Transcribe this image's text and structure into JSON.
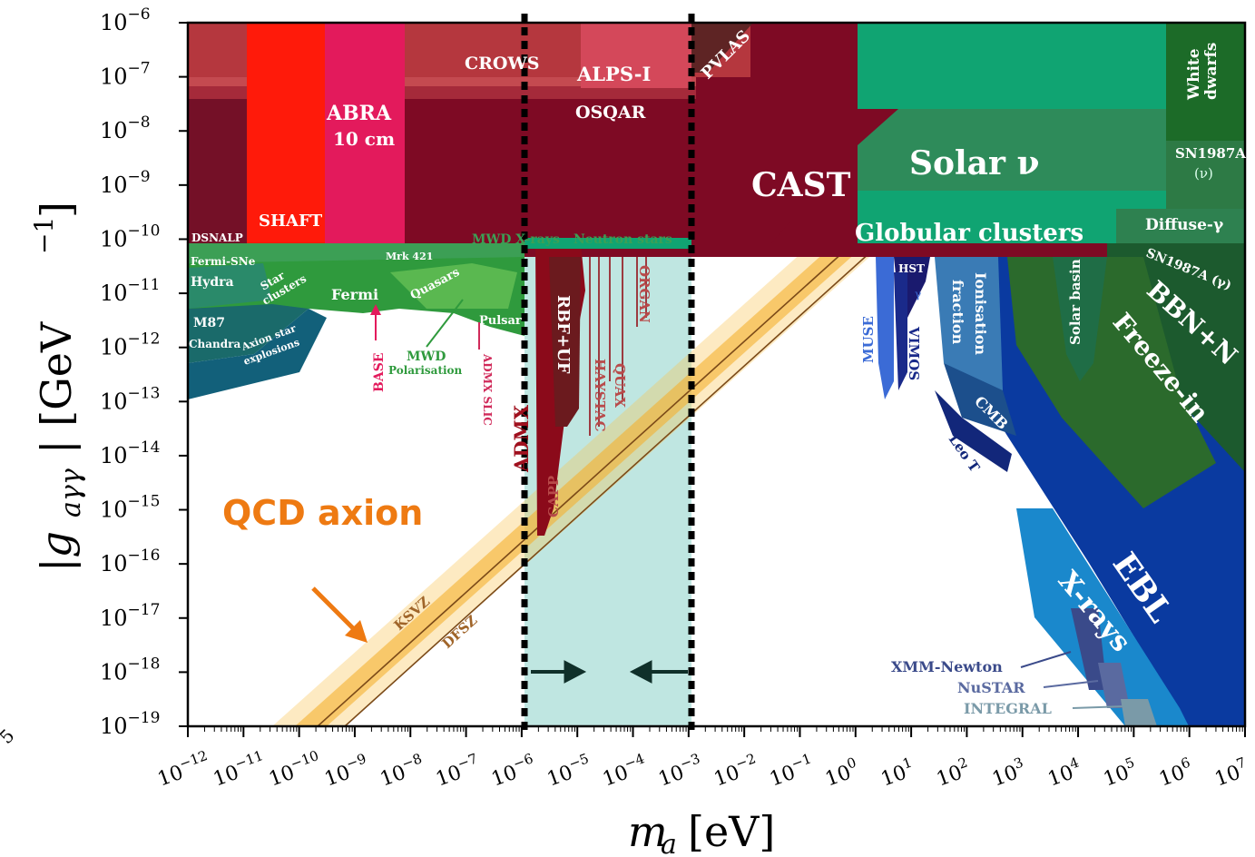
{
  "chart_data": {
    "type": "area",
    "title": "",
    "xlabel": "m_a [eV]",
    "ylabel": "|g_aγγ| [GeV^-1]",
    "x_scale": "log",
    "y_scale": "log",
    "xlim": [
      1e-12,
      10000000.0
    ],
    "ylim": [
      1e-19,
      1e-06
    ],
    "x_tick_exponents": [
      -12,
      -11,
      -10,
      -9,
      -8,
      -7,
      -6,
      -5,
      -4,
      -3,
      -2,
      -1,
      0,
      1,
      2,
      3,
      4,
      5,
      6,
      7
    ],
    "y_tick_exponents": [
      -6,
      -7,
      -8,
      -9,
      -10,
      -11,
      -12,
      -13,
      -14,
      -15,
      -16,
      -17,
      -18,
      -19
    ],
    "highlight_window": {
      "x_min": 1e-06,
      "x_max": 0.001,
      "color": "#bfe6e1"
    },
    "qcd_band_label": "QCD axion",
    "model_lines": [
      {
        "name": "KSVZ",
        "points": [
          [
            1e-10,
            1e-19
          ],
          [
            0.1,
            1e-10
          ]
        ]
      },
      {
        "name": "DFSZ",
        "points": [
          [
            4e-10,
            1e-19
          ],
          [
            0.4,
            1e-10
          ]
        ]
      }
    ],
    "regions": [
      {
        "name": "CAST",
        "color": "#7e0a24",
        "bound": [
          [
            1e-12,
            6e-11
          ],
          [
            1,
            6e-11
          ],
          [
            1,
            1e-08
          ],
          [
            1e-12,
            1e-08
          ]
        ]
      },
      {
        "name": "SHAFT",
        "color": "#ff1a0a"
      },
      {
        "name": "ABRA 10 cm",
        "color": "#e31a5c"
      },
      {
        "name": "CROWS",
        "color": "#b0363c"
      },
      {
        "name": "ALPS-I",
        "color": "#d4485a"
      },
      {
        "name": "OSQAR",
        "color": "#8c1a2e"
      },
      {
        "name": "PVLAS",
        "color": "#6e2a2a"
      },
      {
        "name": "Solar ν",
        "color": "#2e8b5a"
      },
      {
        "name": "Globular clusters",
        "color": "#10a472"
      },
      {
        "name": "White dwarfs",
        "color": "#1c6b28"
      },
      {
        "name": "SN1987A (ν)",
        "color": "#2d7a45"
      },
      {
        "name": "Diffuse-γ",
        "color": "#2e8150"
      },
      {
        "name": "SN1987A (γ)",
        "color": "#1e5e32"
      },
      {
        "name": "BBN+N_eff",
        "color": "#1c5a2e"
      },
      {
        "name": "Freeze-in",
        "color": "#2b6a2c"
      },
      {
        "name": "Solar basin",
        "color": "#1f6d46"
      },
      {
        "name": "EBL",
        "color": "#0a3aa0"
      },
      {
        "name": "X-rays",
        "color": "#1a88cc"
      },
      {
        "name": "Ionisation fraction",
        "color": "#3a7bb5"
      },
      {
        "name": "CMB",
        "color": "#1c4f8c"
      },
      {
        "name": "Leo T",
        "color": "#12277a"
      },
      {
        "name": "HST",
        "color": "#1a1a6e"
      },
      {
        "name": "MUSE",
        "color": "#3b6bd6"
      },
      {
        "name": "VIMOS",
        "color": "#1a2a8a"
      },
      {
        "name": "ADMX",
        "color": "#8b0a1a"
      },
      {
        "name": "RBF+UF",
        "color": "#6b1a1e"
      },
      {
        "name": "Fermi",
        "color": "#3a9a3a"
      },
      {
        "name": "Quasars",
        "color": "#5ab850"
      },
      {
        "name": "Hydra",
        "color": "#2a8a6a"
      },
      {
        "name": "M87",
        "color": "#1a6a6a"
      },
      {
        "name": "Chandra",
        "color": "#12607a"
      }
    ]
  },
  "labels": {
    "xlabel_m": "m",
    "xlabel_a": "a",
    "xlabel_unit": "[eV]",
    "ylabel": "|g",
    "ylabel_sub": "aγγ",
    "ylabel_unit": "| [GeV",
    "ylabel_exp": "−1",
    "ylabel_close": "]",
    "tick_base": "10",
    "cast": "CAST",
    "shaft": "SHAFT",
    "abra1": "ABRA",
    "abra2": "10 cm",
    "crows": "CROWS",
    "alps": "ALPS-I",
    "osqar": "OSQAR",
    "pvlas": "PVLAS",
    "solar_nu": "Solar ν",
    "globular": "Globular clusters",
    "white1": "White",
    "white2": "dwarfs",
    "sn1987a_nu1": "SN1987A",
    "sn1987a_nu2": "(ν)",
    "diffuse": "Diffuse-γ",
    "sn1987a_gamma": "SN1987A (γ)",
    "bbn": "BBN+N",
    "bbn_sub": "eff",
    "freezein": "Freeze-in",
    "solarbasin": "Solar basin",
    "ebl": "EBL",
    "xrays": "X-rays",
    "ionisation1": "Ionisation",
    "ionisation2": "fraction",
    "cmb": "CMB",
    "leot": "Leo T",
    "hst": "HST",
    "gamma_small": "γ",
    "muse": "MUSE",
    "vimos": "VIMOS",
    "xmm": "XMM-Newton",
    "nustar": "NuSTAR",
    "integral": "INTEGRAL",
    "dsnalp": "DSNALP",
    "fermi_sne": "Fermi-SNe",
    "hydra": "Hydra",
    "star_clusters1": "Star",
    "star_clusters2": "clusters",
    "mrk421": "Mrk 421",
    "fermi": "Fermi",
    "quasars": "Quasars",
    "pulsar": "Pulsar",
    "m87": "M87",
    "chandra": "Chandra",
    "axion_star1": "Axion star",
    "axion_star2": "explosions",
    "base": "BASE",
    "mwd_pol1": "MWD",
    "mwd_pol2": "Polarisation",
    "admx_sljc": "ADMX SLIC",
    "mwd_xrays": "MWD X-rays",
    "neutron_stars": "Neutron stars",
    "admx": "ADMX",
    "rbf_uf": "RBF+UF",
    "capp": "CAPP",
    "haystac": "HAYSTAC",
    "quax": "QUAX",
    "organ": "ORGAN",
    "qcd": "QCD axion",
    "ksvz": "KSVZ",
    "dfsz": "DFSZ",
    "edge_text": "5"
  },
  "colors": {
    "qcd_orange": "#ee7a12",
    "window": "#bfe6e1",
    "arrow": "#10302a"
  }
}
